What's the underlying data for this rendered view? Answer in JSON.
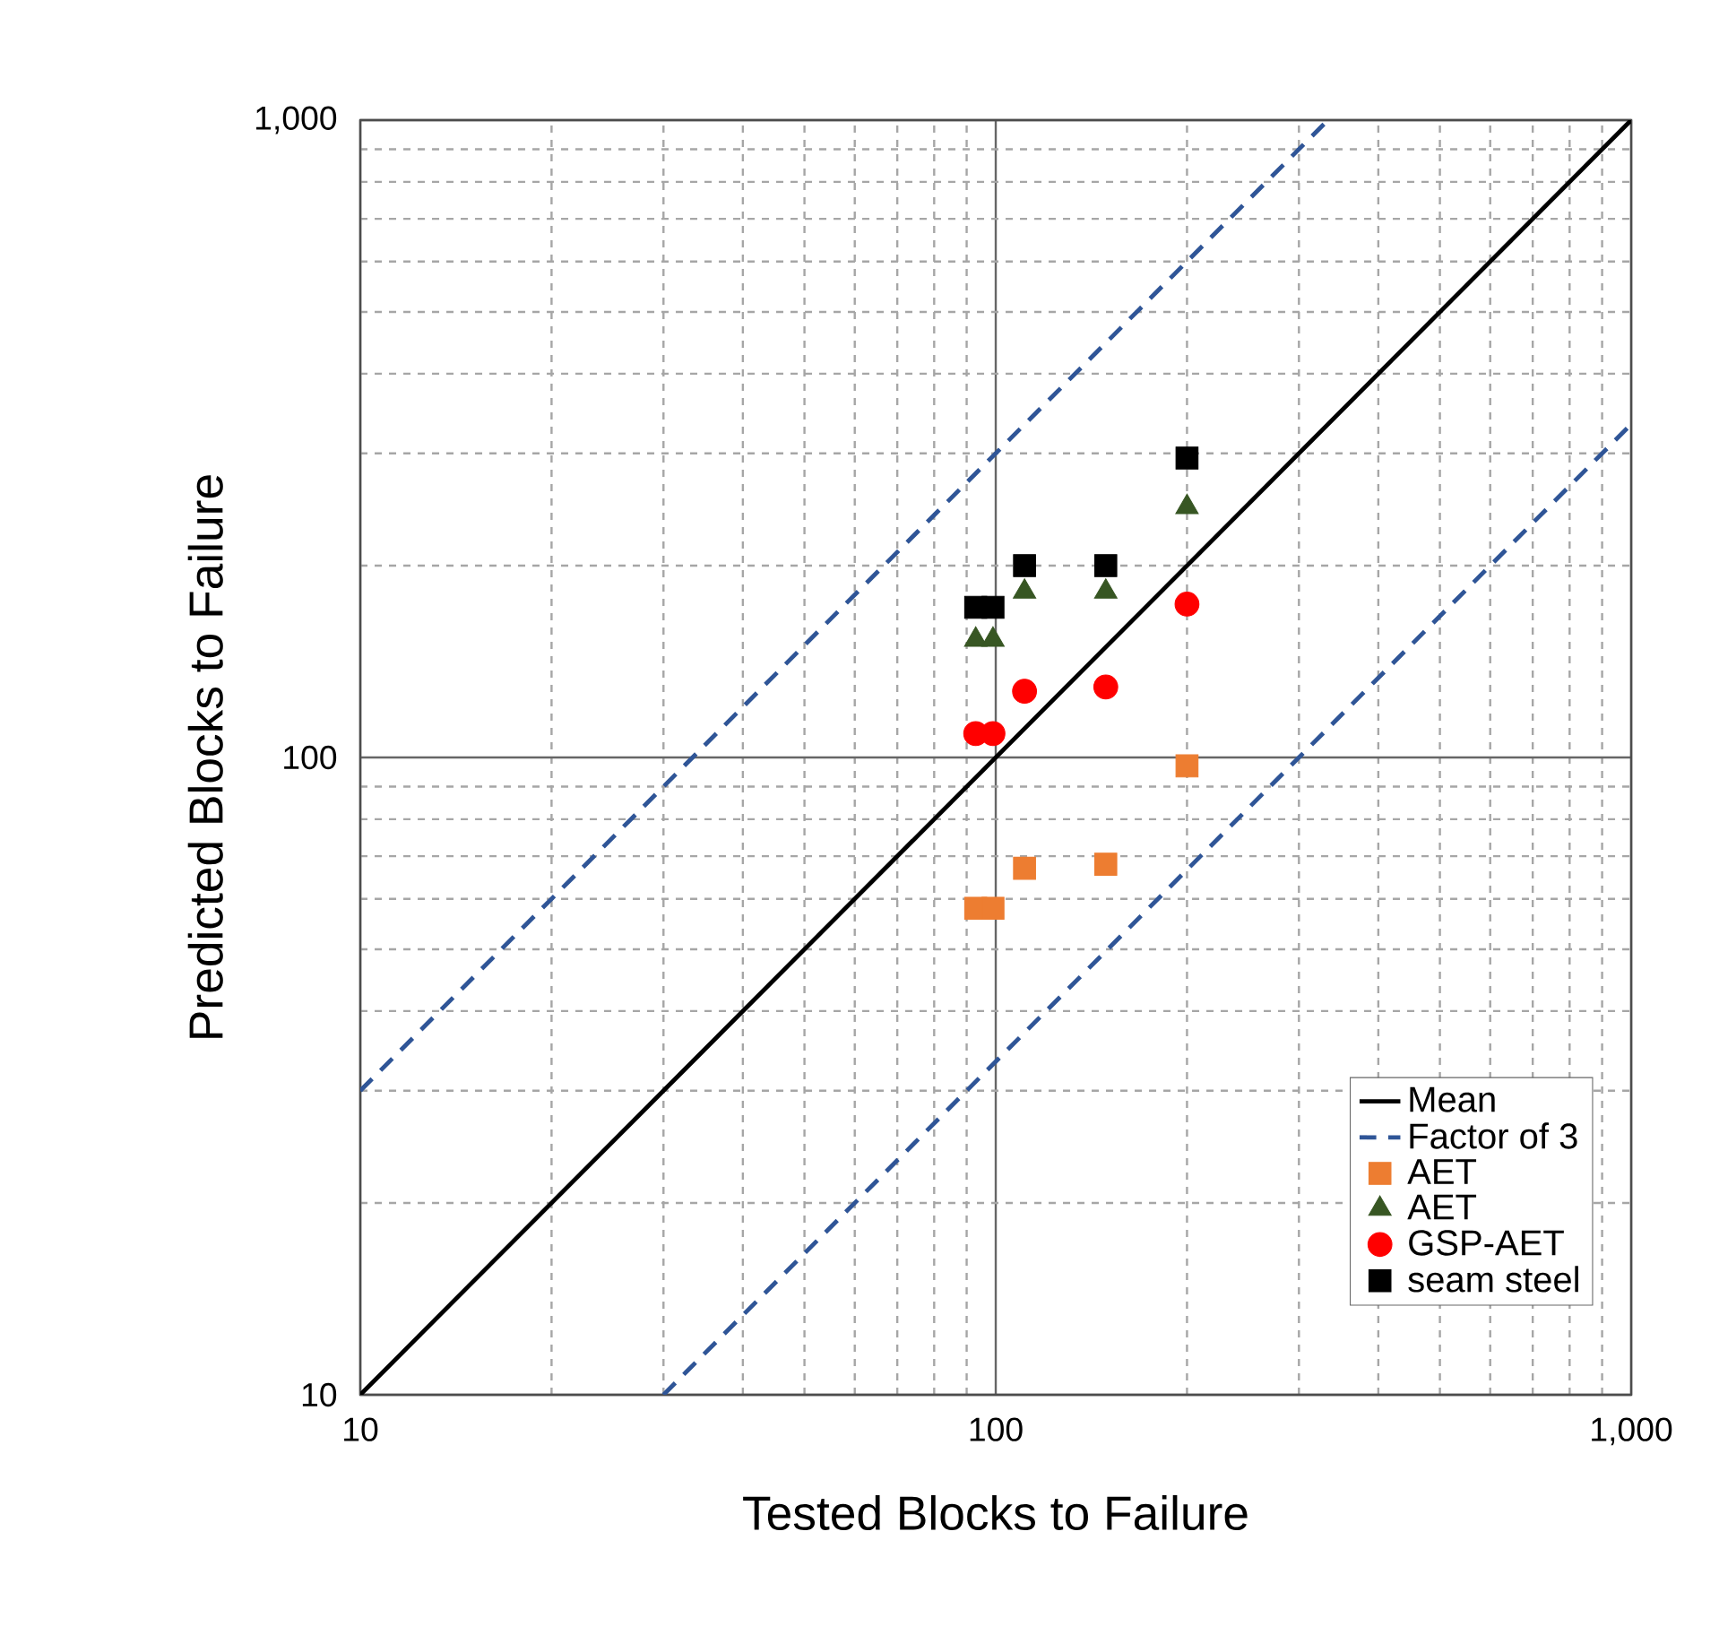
{
  "chart_data": {
    "type": "scatter",
    "xlabel": "Tested Blocks to Failure",
    "ylabel": "Predicted Blocks to Failure",
    "log": "xy",
    "grid": true,
    "legend": "bottom right",
    "xlim": [
      10,
      1000
    ],
    "ylim": [
      10,
      1000
    ],
    "xticks": [
      10,
      100,
      {
        "value": 1000,
        "label": "1,000"
      }
    ],
    "yticks": [
      10,
      100,
      {
        "value": 1000,
        "label": "1,000"
      }
    ],
    "series": [
      {
        "name": "Mean",
        "type": "line",
        "line_style": "solid",
        "color": "#000000",
        "x": [
          10,
          1000
        ],
        "values": [
          10,
          1000
        ]
      },
      {
        "name": "Factor of 3",
        "type": "line",
        "line_style": "dashed",
        "color": "#2f5597",
        "x": [
          10,
          333.3
        ],
        "values": [
          30,
          1000
        ]
      },
      {
        "type": "line",
        "line_style": "dashed",
        "color": "#2f5597",
        "x": [
          30,
          1000
        ],
        "values": [
          10,
          333.3
        ]
      },
      {
        "name": "AET",
        "marker": "square",
        "color": "#ed7d31",
        "x": [
          93,
          99,
          111,
          149,
          200
        ],
        "values": [
          58,
          58,
          67,
          68,
          97
        ]
      },
      {
        "name": "AET",
        "marker": "triangle",
        "color": "#375623",
        "x": [
          93,
          99,
          111,
          149,
          200
        ],
        "values": [
          153,
          153,
          182,
          182,
          247
        ]
      },
      {
        "name": "GSP-AET",
        "marker": "circle",
        "color": "#ff0000",
        "x": [
          93,
          99,
          111,
          149,
          200
        ],
        "values": [
          109,
          109,
          127,
          129,
          174
        ]
      },
      {
        "name": "seam steel",
        "marker": "square",
        "color": "#000000",
        "x": [
          93,
          99,
          111,
          149,
          200
        ],
        "values": [
          172,
          172,
          200,
          200,
          295
        ]
      }
    ]
  }
}
